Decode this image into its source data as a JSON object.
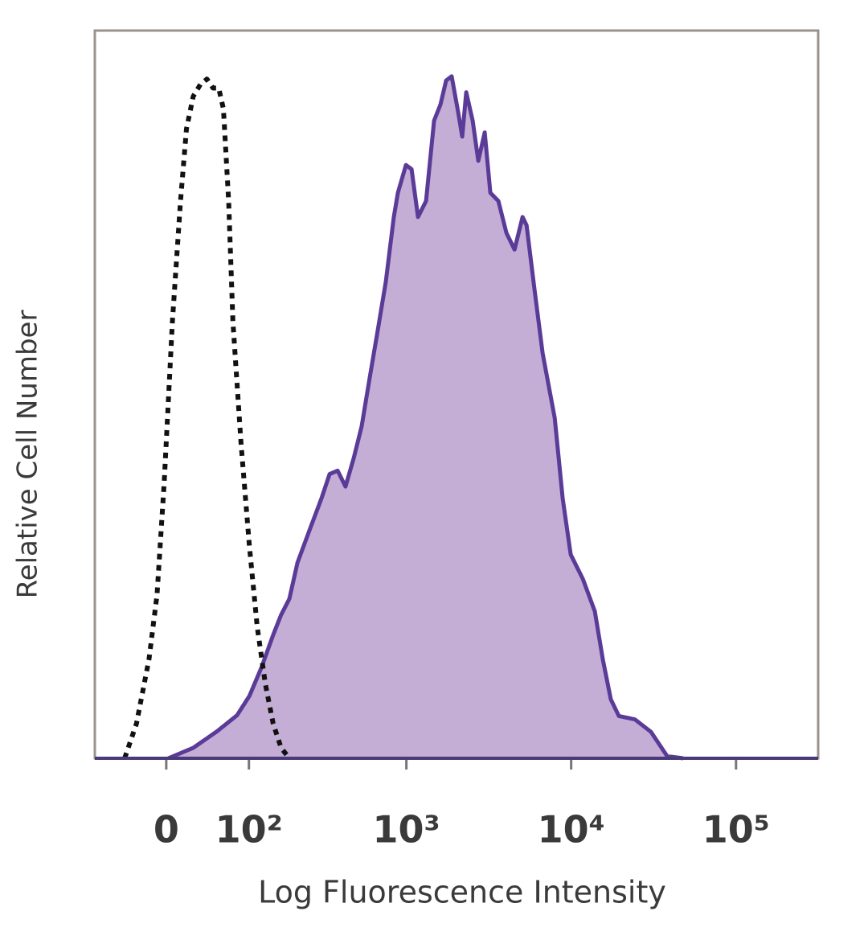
{
  "chart_data": {
    "type": "line",
    "xlabel": "Log Fluorescence Intensity",
    "ylabel": "Relative Cell Number",
    "xscale": "logicle",
    "xlim": [
      -82,
      315000
    ],
    "xticks": [
      0,
      {
        "value": 100,
        "label": "10²"
      },
      {
        "value": 1000,
        "label": "10³"
      },
      {
        "value": 10000,
        "label": "10⁴"
      },
      {
        "value": 100000,
        "label": "10⁵"
      }
    ],
    "ylim": [
      0,
      105
    ],
    "grid": false,
    "series": [
      {
        "color": "#5a3b98",
        "fill": "#c4aed6",
        "dashed": false,
        "x": [
          2,
          27,
          54,
          81,
          101,
          123,
          148,
          167,
          189,
          213,
          254,
          302,
          339,
          380,
          425,
          477,
          534,
          598,
          670,
          750,
          839,
          888,
          994,
          1076,
          1177,
          1317,
          1473,
          1611,
          1744,
          1885,
          2063,
          2182,
          2310,
          2527,
          2734,
          2990,
          3234,
          3619,
          4050,
          4533,
          5072,
          5365,
          6000,
          6713,
          7945,
          8885,
          9940,
          11760,
          13915,
          15560,
          17408,
          19475,
          24370,
          30500,
          38200,
          47800
        ],
        "values": [
          0,
          1.5,
          3.9,
          6.2,
          9.0,
          13.1,
          17.8,
          20.7,
          23.0,
          28.2,
          32.9,
          37.5,
          41.0,
          41.5,
          39.2,
          43.3,
          47.9,
          54.9,
          61.8,
          68.8,
          78.1,
          81.6,
          85.6,
          85.0,
          78.1,
          80.4,
          92.0,
          94.3,
          97.8,
          98.4,
          93.2,
          89.7,
          96.1,
          92.0,
          86.2,
          90.3,
          81.6,
          80.4,
          75.8,
          73.4,
          78.1,
          76.9,
          67.6,
          58.4,
          49.1,
          37.5,
          29.4,
          25.9,
          21.2,
          14.3,
          8.5,
          6.1,
          5.6,
          3.8,
          0.3,
          0
        ]
      },
      {
        "color": "#111111",
        "fill": null,
        "dashed": true,
        "x": [
          -43,
          -30,
          -17,
          -9,
          -2,
          6,
          14,
          20,
          27,
          35,
          42,
          49,
          56,
          62,
          69,
          75,
          87,
          101,
          115,
          131,
          148,
          167,
          189
        ],
        "values": [
          0,
          5.0,
          14.3,
          23.6,
          39.8,
          63.0,
          80.4,
          90.8,
          95.5,
          97.3,
          98.0,
          96.7,
          96.7,
          93.7,
          80.4,
          63.0,
          45.6,
          30.5,
          18.9,
          10.7,
          5.0,
          1.5,
          0
        ]
      }
    ]
  }
}
